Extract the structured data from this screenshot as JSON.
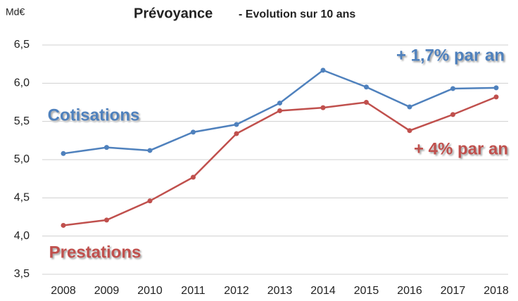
{
  "chart_data": {
    "type": "line",
    "title": "Prévoyance",
    "subtitle": "- Evolution sur 10 ans",
    "y_label": "Md€",
    "categories": [
      "2008",
      "2009",
      "2010",
      "2011",
      "2012",
      "2013",
      "2014",
      "2015",
      "2016",
      "2017",
      "2018"
    ],
    "series": [
      {
        "name": "Cotisations",
        "color": "#4f81bd",
        "values": [
          5.08,
          5.16,
          5.12,
          5.36,
          5.46,
          5.74,
          6.17,
          5.95,
          5.69,
          5.93,
          5.94
        ]
      },
      {
        "name": "Prestations",
        "color": "#c0504d",
        "values": [
          4.14,
          4.21,
          4.46,
          4.77,
          5.34,
          5.64,
          5.68,
          5.75,
          5.38,
          5.59,
          5.82
        ]
      }
    ],
    "annotations": [
      "+ 1,7% par an",
      "+ 4% par an"
    ],
    "ylim": [
      3.5,
      6.5
    ],
    "yticks": [
      {
        "value": 3.5,
        "label": "3,5"
      },
      {
        "value": 4.0,
        "label": "4,0"
      },
      {
        "value": 4.5,
        "label": "4,5"
      },
      {
        "value": 5.0,
        "label": "5,0"
      },
      {
        "value": 5.5,
        "label": "5,5"
      },
      {
        "value": 6.0,
        "label": "6,0"
      },
      {
        "value": 6.5,
        "label": "6,5"
      }
    ],
    "grid": true
  }
}
